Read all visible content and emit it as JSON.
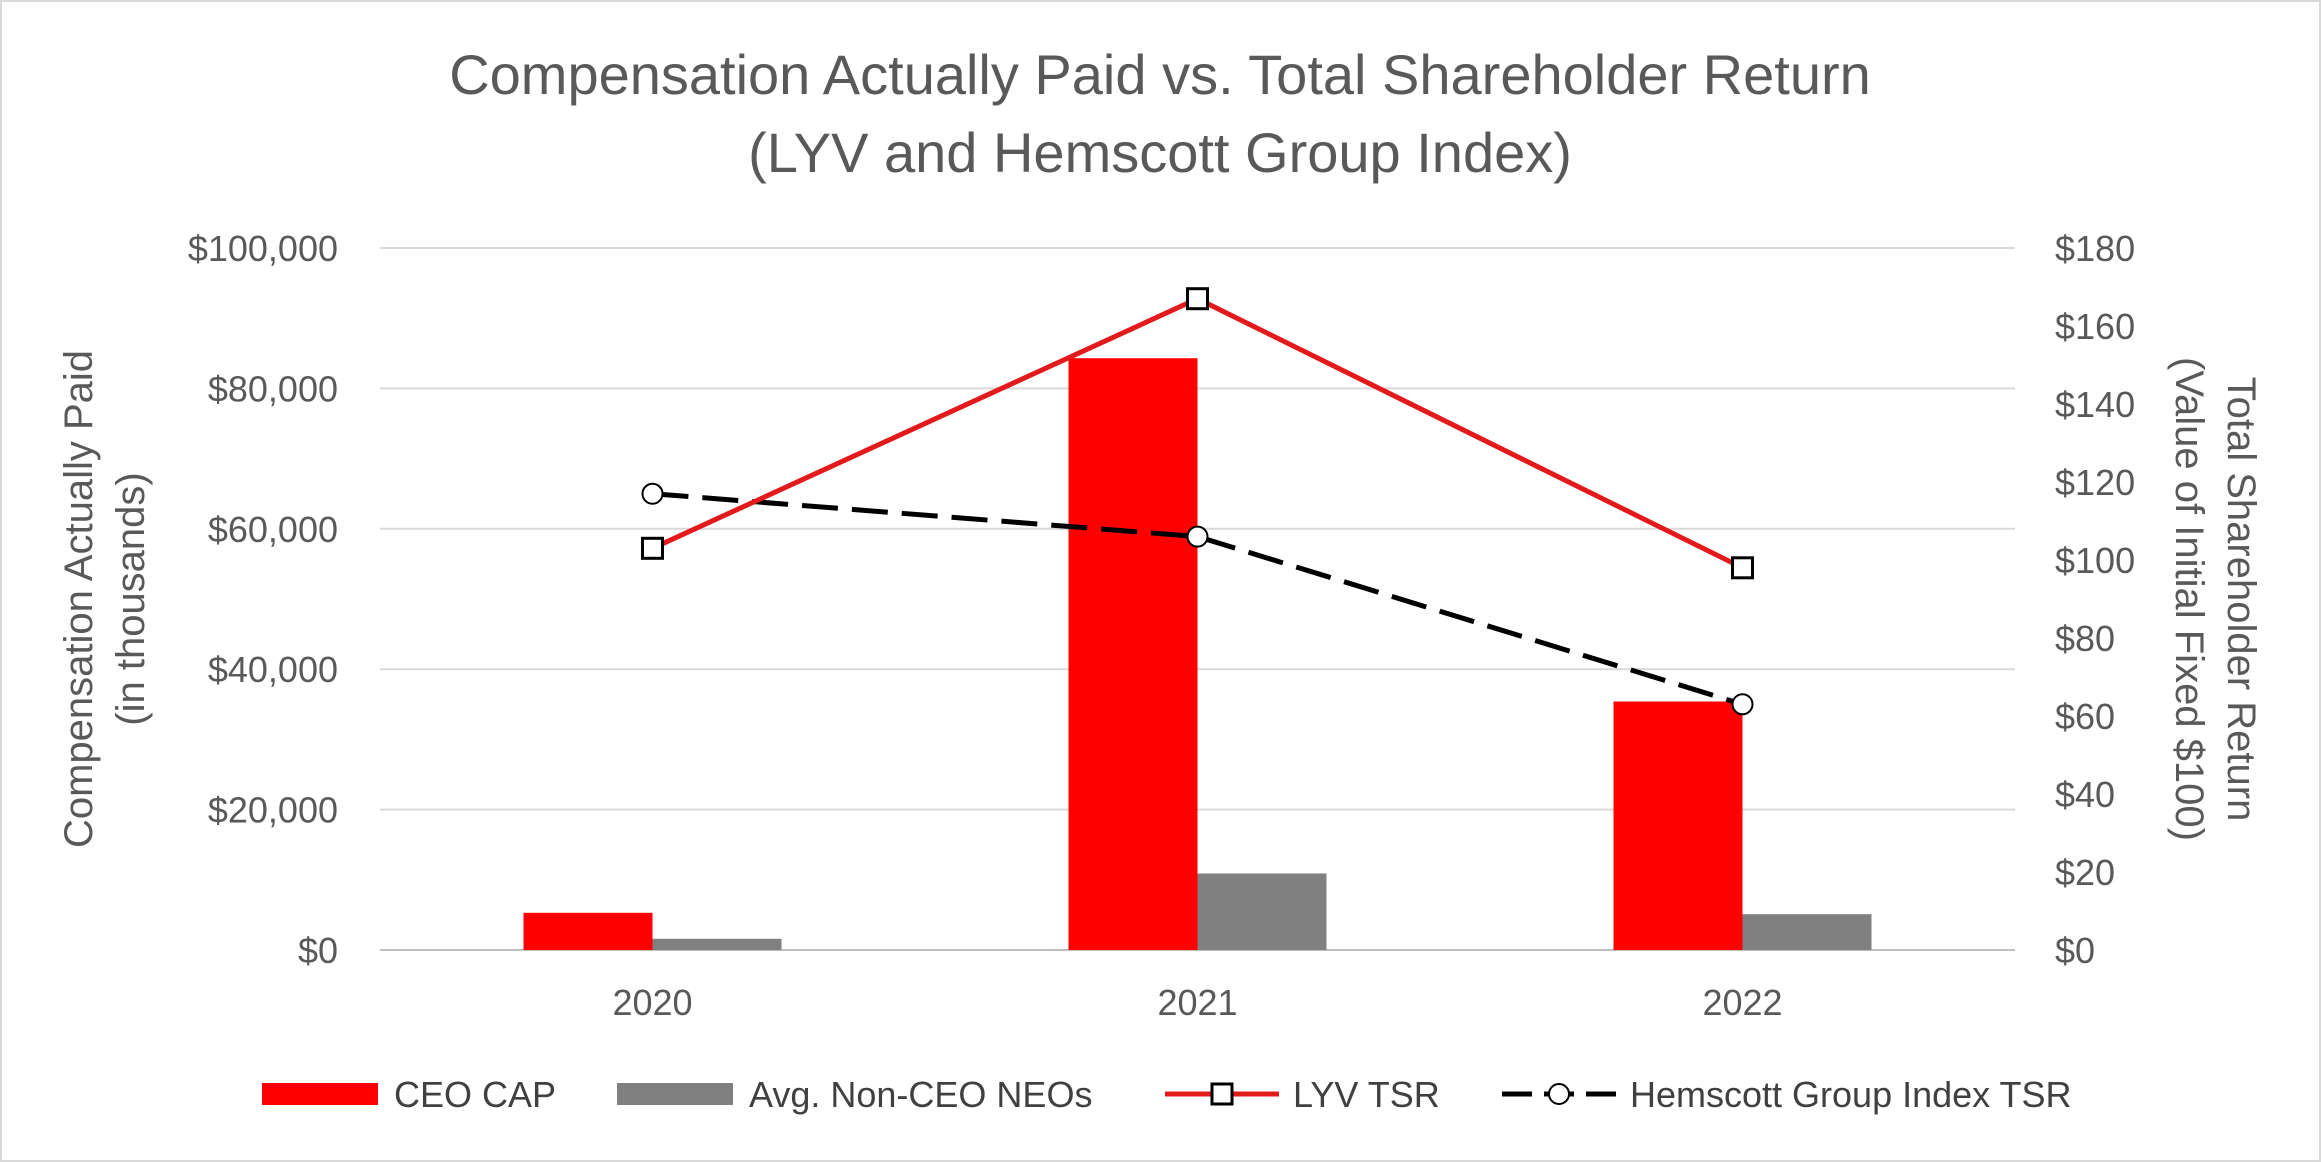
{
  "chart_data": {
    "type": "bar",
    "title": [
      "Compensation Actually Paid vs. Total Shareholder Return",
      "(LYV and Hemscott Group Index)"
    ],
    "categories": [
      "2020",
      "2021",
      "2022"
    ],
    "y_left": {
      "label": [
        "Compensation Actually Paid",
        "(in thousands)"
      ],
      "range": [
        0,
        100000
      ],
      "ticks": [
        0,
        20000,
        40000,
        60000,
        80000,
        100000
      ],
      "tick_labels": [
        "$0",
        "$20,000",
        "$40,000",
        "$60,000",
        "$80,000",
        "$100,000"
      ]
    },
    "y_right": {
      "label": [
        "Total Shareholder Return",
        "(Value of Initial Fixed $100)"
      ],
      "range": [
        0,
        180
      ],
      "ticks": [
        0,
        20,
        40,
        60,
        80,
        100,
        120,
        140,
        160,
        180
      ],
      "tick_labels": [
        "$0",
        "$20",
        "$40",
        "$60",
        "$80",
        "$100",
        "$120",
        "$140",
        "$160",
        "$180"
      ]
    },
    "grid": true,
    "legend_position": "bottom",
    "series": [
      {
        "name": "CEO CAP",
        "type": "bar",
        "axis": "left",
        "color": "#ff0000",
        "values": [
          5300,
          84300,
          35400
        ]
      },
      {
        "name": "Avg. Non-CEO NEOs",
        "type": "bar",
        "axis": "left",
        "color": "#808080",
        "values": [
          1600,
          10900,
          5100
        ]
      },
      {
        "name": "LYV TSR",
        "type": "line",
        "axis": "right",
        "color": "#e31a1c",
        "marker": "square",
        "dash": "solid",
        "values": [
          103,
          167,
          98
        ]
      },
      {
        "name": "Hemscott Group Index TSR",
        "type": "line",
        "axis": "right",
        "color": "#000000",
        "marker": "circle",
        "dash": "dashed",
        "values": [
          117,
          106,
          63
        ]
      }
    ]
  }
}
